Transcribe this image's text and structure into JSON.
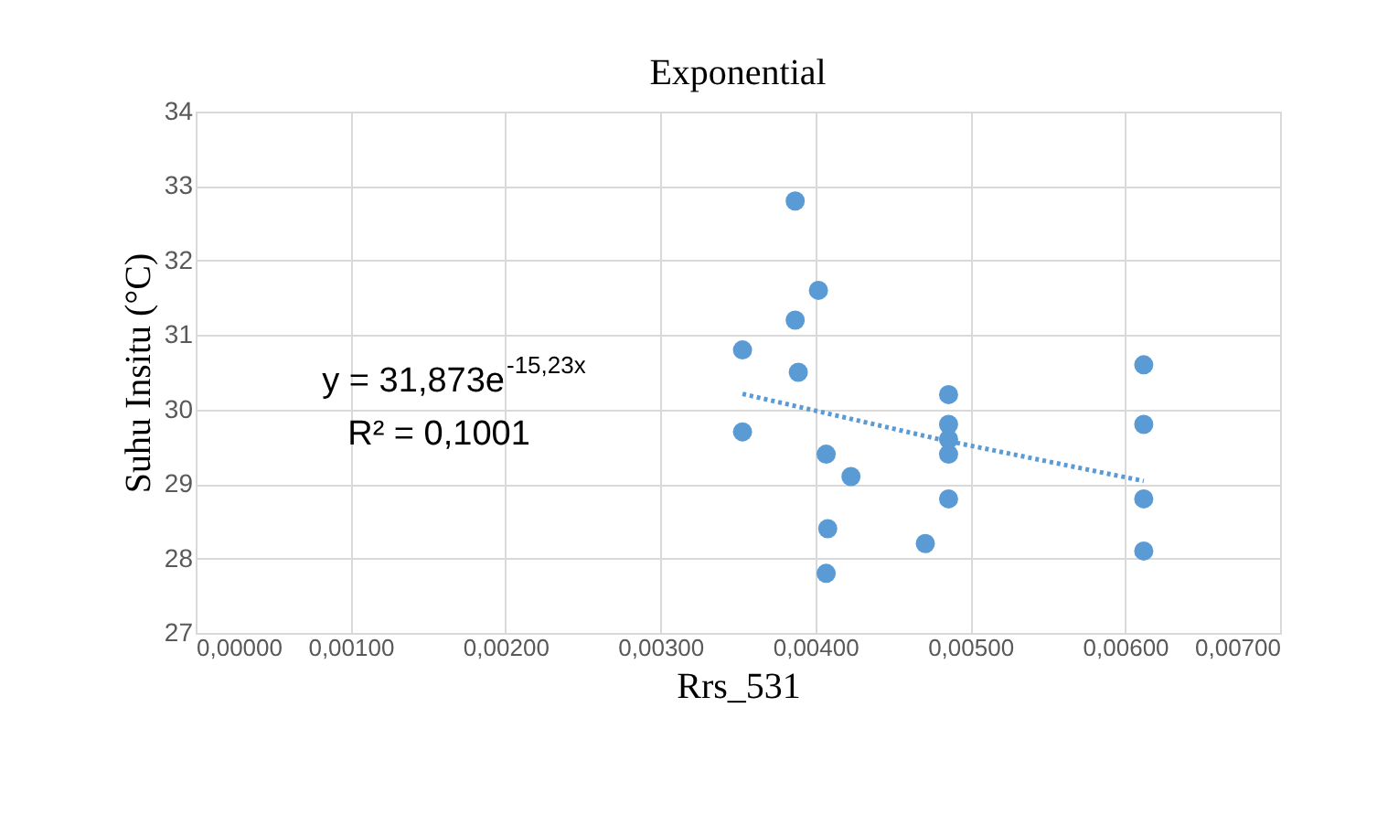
{
  "chart_data": {
    "type": "scatter",
    "title": "Exponential",
    "xlabel": "Rrs_531",
    "ylabel": "Suhu Insitu (°C)",
    "xlim": [
      0,
      0.007
    ],
    "ylim": [
      27,
      34
    ],
    "xticks": [
      {
        "value": 0,
        "label": "0,00000"
      },
      {
        "value": 0.001,
        "label": "0,00100"
      },
      {
        "value": 0.002,
        "label": "0,00200"
      },
      {
        "value": 0.003,
        "label": "0,00300"
      },
      {
        "value": 0.004,
        "label": "0,00400"
      },
      {
        "value": 0.005,
        "label": "0,00500"
      },
      {
        "value": 0.006,
        "label": "0,00600"
      },
      {
        "value": 0.007,
        "label": "0,00700"
      }
    ],
    "yticks": [
      27,
      28,
      29,
      30,
      31,
      32,
      33,
      34
    ],
    "grid": true,
    "series": [
      {
        "type": "scatter",
        "marker": "circle",
        "color": "#5b9bd5",
        "x": [
          0.00353,
          0.00353,
          0.00387,
          0.00387,
          0.00389,
          0.00402,
          0.00407,
          0.00408,
          0.00407,
          0.00423,
          0.00471,
          0.00486,
          0.00486,
          0.00486,
          0.00486,
          0.00486,
          0.00612,
          0.00612,
          0.00612,
          0.00612
        ],
        "values": [
          30.8,
          29.7,
          32.8,
          31.2,
          30.5,
          31.6,
          29.4,
          28.4,
          27.8,
          29.1,
          28.2,
          30.2,
          29.8,
          29.6,
          29.4,
          28.8,
          30.6,
          29.8,
          28.8,
          28.1
        ]
      },
      {
        "type": "line",
        "color": "#5b9bd5",
        "line_style": "dotted",
        "x": [
          0.00353,
          0.0048,
          0.00612
        ],
        "values": [
          30.21,
          29.6,
          29.04
        ]
      }
    ],
    "annotations": [
      "y = 31,873e$^{-15,23x}$",
      "R² = 0,1001"
    ]
  }
}
